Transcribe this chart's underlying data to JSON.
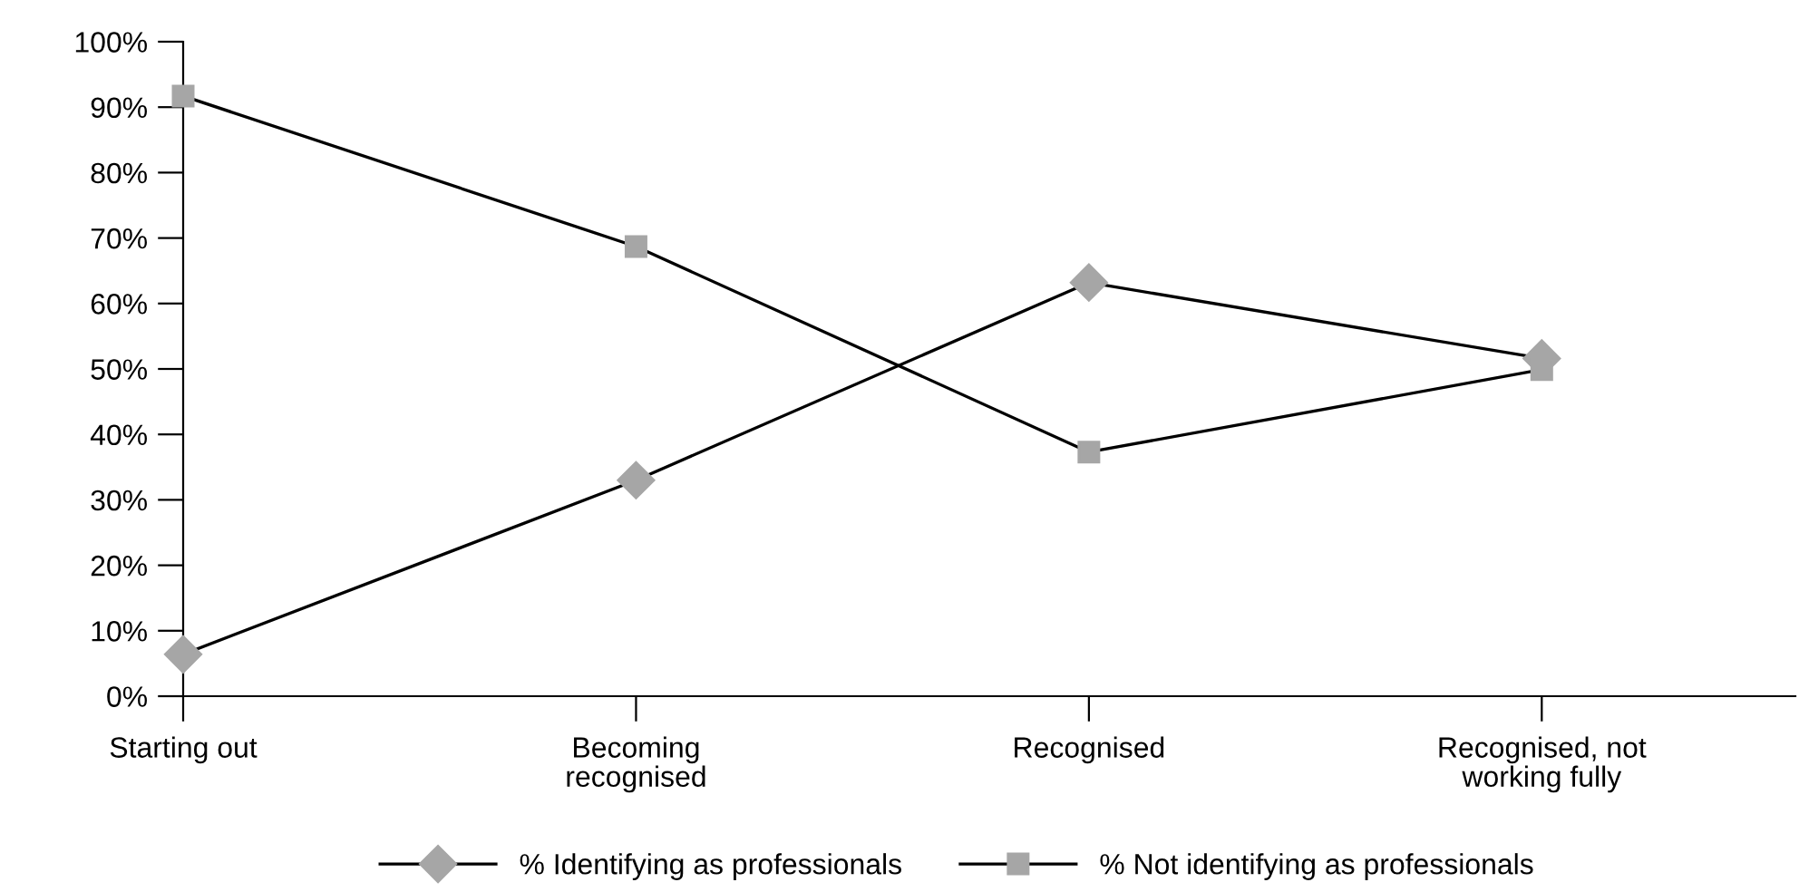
{
  "chart_data": {
    "type": "line",
    "categories": [
      "Starting out",
      "Becoming\nrecognised",
      "Recognised",
      "Recognised, not\nworking fully"
    ],
    "series": [
      {
        "name": "% Identifying as professionals",
        "color": "#a6a6a6",
        "marker": "diamond",
        "values": [
          6.4,
          33,
          63.2,
          51.6
        ]
      },
      {
        "name": "% Not identifying as professionals",
        "color": "#a6a6a6",
        "marker": "square",
        "values": [
          91.7,
          68.7,
          37.3,
          49.9
        ]
      }
    ],
    "ylim": [
      0,
      100
    ],
    "yticks": [
      {
        "value": 0,
        "label": "0%"
      },
      {
        "value": 10,
        "label": "10%"
      },
      {
        "value": 20,
        "label": "20%"
      },
      {
        "value": 30,
        "label": "30%"
      },
      {
        "value": 40,
        "label": "40%"
      },
      {
        "value": 50,
        "label": "50%"
      },
      {
        "value": 60,
        "label": "60%"
      },
      {
        "value": 70,
        "label": "70%"
      },
      {
        "value": 80,
        "label": "80%"
      },
      {
        "value": 90,
        "label": "90%"
      },
      {
        "value": 100,
        "label": "100%"
      }
    ],
    "grid": false,
    "legend": "bottom",
    "line_style": "solid"
  }
}
